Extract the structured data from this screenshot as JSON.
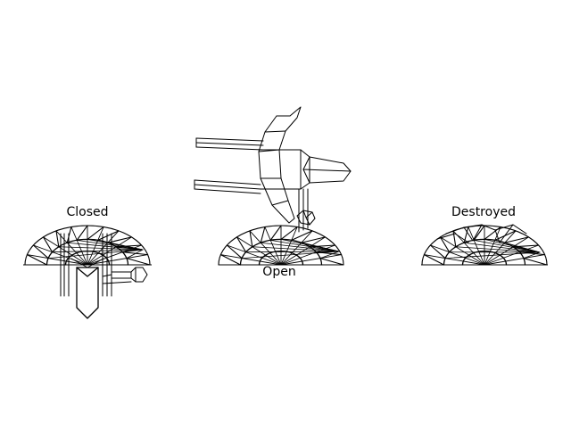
{
  "labels": {
    "closed": "Closed",
    "open": "Open",
    "destroyed": "Destroyed"
  },
  "colors": {
    "background": "#ffffff",
    "stroke": "#000000",
    "thin_stroke": "#444444"
  }
}
